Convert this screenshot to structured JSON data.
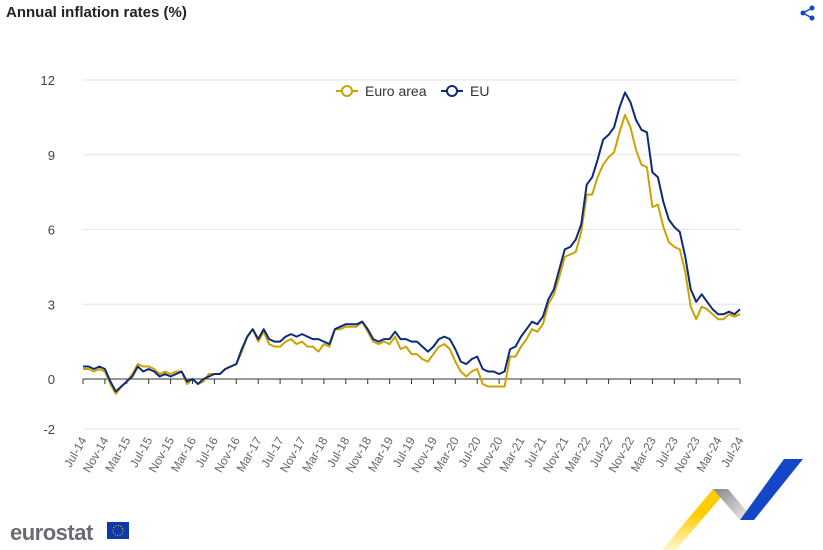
{
  "header": {
    "title": "Annual inflation rates (%)",
    "share_icon": "share-icon"
  },
  "branding": {
    "logo_text": "eurostat"
  },
  "colors": {
    "euro_area": "#c9a400",
    "eu": "#0e2a7a",
    "grid": "#e4e4ec",
    "axis": "#333333"
  },
  "chart_data": {
    "type": "line",
    "title": "Annual inflation rates (%)",
    "xlabel": "",
    "ylabel": "",
    "ylim": [
      -2,
      12
    ],
    "yticks": [
      -2,
      0,
      3,
      6,
      9,
      12
    ],
    "grid": true,
    "legend_position": "top-center",
    "x_start": "Jul-14",
    "xtick_labels": [
      "Jul-14",
      "Nov-14",
      "Mar-15",
      "Jul-15",
      "Nov-15",
      "Mar-16",
      "Jul-16",
      "Nov-16",
      "Mar-17",
      "Jul-17",
      "Nov-17",
      "Mar-18",
      "Jul-18",
      "Nov-18",
      "Mar-19",
      "Jul-19",
      "Nov-19",
      "Mar-20",
      "Jul-20",
      "Nov-20",
      "Mar-21",
      "Jul-21",
      "Nov-21",
      "Mar-22",
      "Jul-22",
      "Nov-22",
      "Mar-23",
      "Jul-23",
      "Nov-23",
      "Mar-24",
      "Jul-24"
    ],
    "series": [
      {
        "name": "Euro area",
        "color": "#c9a400",
        "values": [
          0.4,
          0.4,
          0.3,
          0.4,
          0.3,
          -0.2,
          -0.6,
          -0.3,
          -0.1,
          0.2,
          0.6,
          0.5,
          0.5,
          0.4,
          0.2,
          0.3,
          0.2,
          0.3,
          0.3,
          -0.2,
          0.0,
          -0.2,
          -0.1,
          0.2,
          0.2,
          0.2,
          0.4,
          0.5,
          0.6,
          1.1,
          1.7,
          2.0,
          1.5,
          1.9,
          1.4,
          1.3,
          1.3,
          1.5,
          1.6,
          1.4,
          1.5,
          1.3,
          1.3,
          1.1,
          1.4,
          1.3,
          2.0,
          2.0,
          2.1,
          2.1,
          2.1,
          2.3,
          1.9,
          1.5,
          1.4,
          1.5,
          1.4,
          1.7,
          1.2,
          1.3,
          1.0,
          1.0,
          0.8,
          0.7,
          1.0,
          1.3,
          1.4,
          1.2,
          0.7,
          0.3,
          0.1,
          0.3,
          0.4,
          -0.2,
          -0.3,
          -0.3,
          -0.3,
          -0.3,
          0.9,
          0.9,
          1.3,
          1.6,
          2.0,
          1.9,
          2.2,
          3.0,
          3.4,
          4.1,
          4.9,
          5.0,
          5.1,
          5.9,
          7.4,
          7.4,
          8.1,
          8.6,
          8.9,
          9.1,
          9.9,
          10.6,
          10.1,
          9.2,
          8.6,
          8.5,
          6.9,
          7.0,
          6.1,
          5.5,
          5.3,
          5.2,
          4.3,
          2.9,
          2.4,
          2.9,
          2.8,
          2.6,
          2.4,
          2.4,
          2.6,
          2.5,
          2.6
        ]
      },
      {
        "name": "EU",
        "color": "#0e2a7a",
        "values": [
          0.5,
          0.5,
          0.4,
          0.5,
          0.4,
          -0.1,
          -0.5,
          -0.3,
          -0.1,
          0.1,
          0.5,
          0.3,
          0.4,
          0.3,
          0.1,
          0.2,
          0.1,
          0.2,
          0.3,
          -0.1,
          0.0,
          -0.2,
          0.0,
          0.1,
          0.2,
          0.2,
          0.4,
          0.5,
          0.6,
          1.2,
          1.7,
          2.0,
          1.6,
          2.0,
          1.6,
          1.5,
          1.5,
          1.7,
          1.8,
          1.7,
          1.8,
          1.7,
          1.6,
          1.6,
          1.5,
          1.4,
          2.0,
          2.1,
          2.2,
          2.2,
          2.2,
          2.3,
          2.0,
          1.6,
          1.5,
          1.6,
          1.6,
          1.9,
          1.6,
          1.6,
          1.5,
          1.5,
          1.3,
          1.1,
          1.3,
          1.6,
          1.7,
          1.6,
          1.2,
          0.7,
          0.6,
          0.8,
          0.9,
          0.4,
          0.3,
          0.3,
          0.2,
          0.3,
          1.2,
          1.3,
          1.7,
          2.0,
          2.3,
          2.2,
          2.5,
          3.2,
          3.6,
          4.4,
          5.2,
          5.3,
          5.6,
          6.2,
          7.8,
          8.1,
          8.8,
          9.6,
          9.8,
          10.1,
          10.9,
          11.5,
          11.1,
          10.4,
          10.0,
          9.9,
          8.3,
          8.1,
          7.1,
          6.4,
          6.1,
          5.9,
          4.9,
          3.6,
          3.1,
          3.4,
          3.1,
          2.8,
          2.6,
          2.6,
          2.7,
          2.6,
          2.8
        ]
      }
    ]
  }
}
